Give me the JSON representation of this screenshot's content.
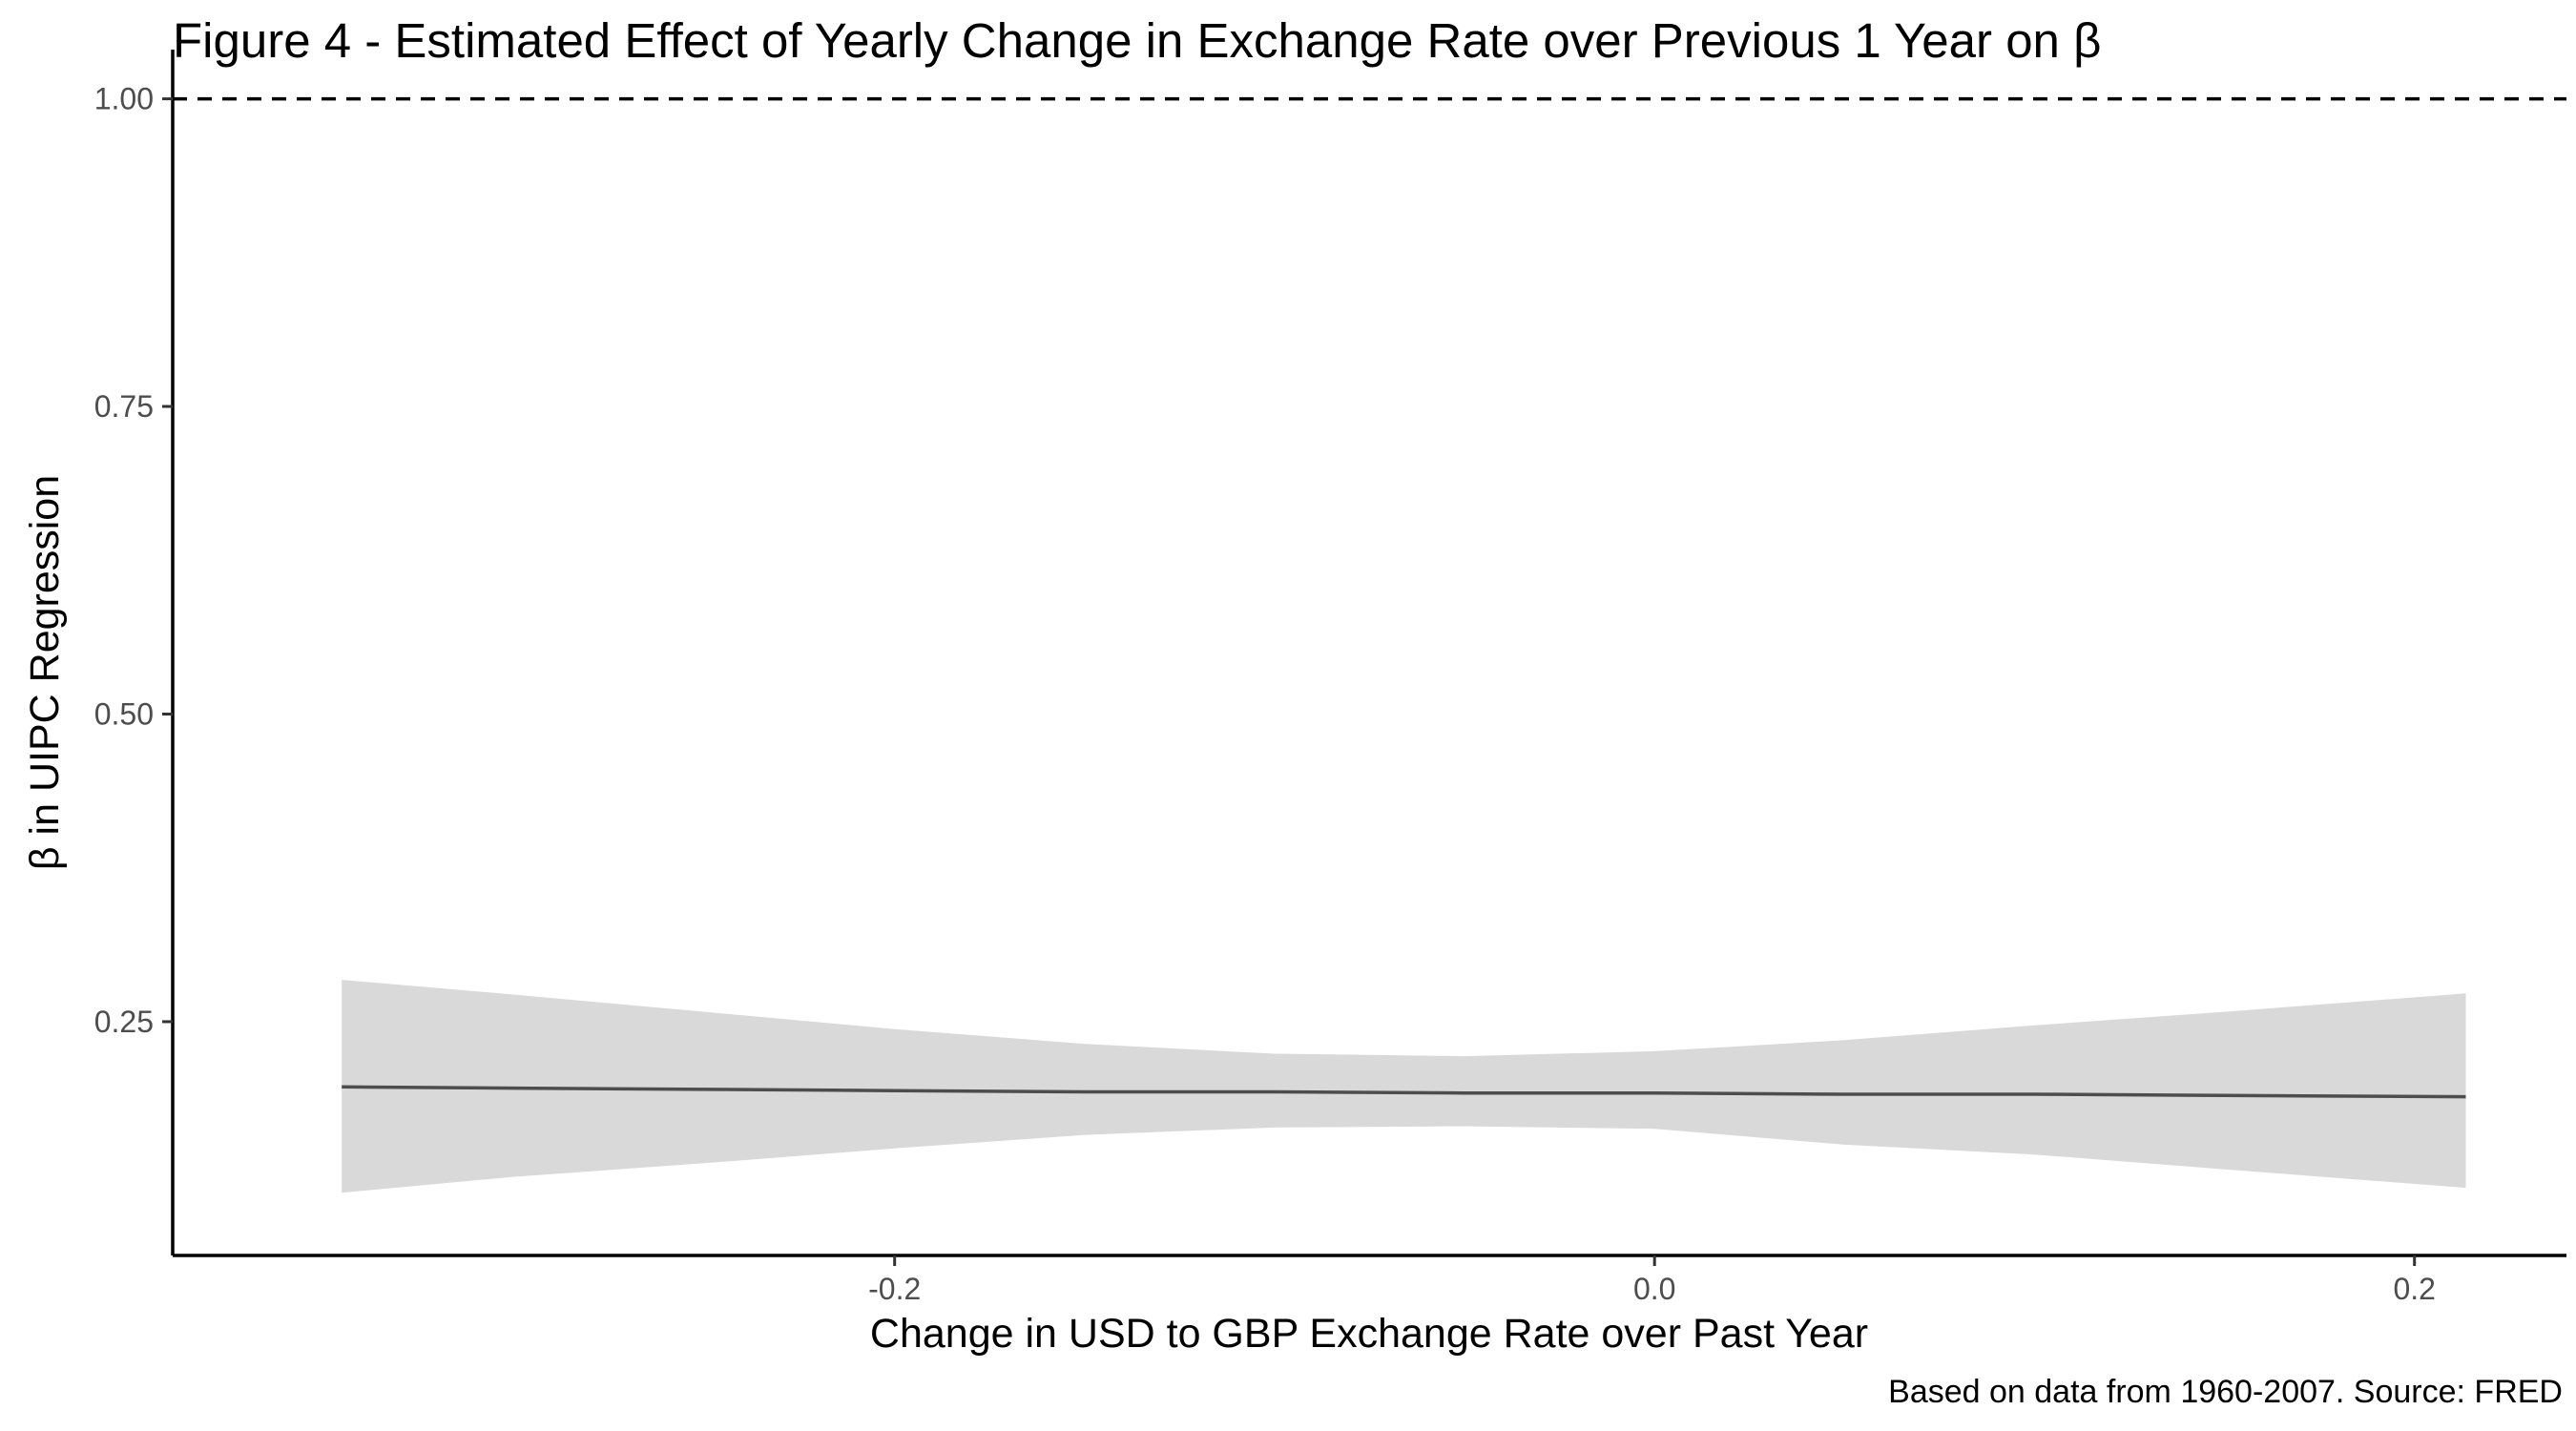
{
  "chart_data": {
    "type": "line",
    "title": "Figure 4 - Estimated Effect of Yearly Change in Exchange Rate over Previous 1 Year on β",
    "xlabel": "Change in USD to GBP Exchange Rate over Past Year",
    "ylabel": "β in UIPC Regression",
    "caption": "Based on data from 1960-2007. Source: FRED",
    "xlim": [
      -0.39,
      0.24
    ],
    "ylim": [
      0.06,
      1.04
    ],
    "x_ticks": [
      {
        "value": -0.2,
        "label": "-0.2"
      },
      {
        "value": 0.0,
        "label": "0.0"
      },
      {
        "value": 0.2,
        "label": "0.2"
      }
    ],
    "y_ticks": [
      {
        "value": 0.25,
        "label": "0.25"
      },
      {
        "value": 0.5,
        "label": "0.50"
      },
      {
        "value": 0.75,
        "label": "0.75"
      },
      {
        "value": 1.0,
        "label": "1.00"
      }
    ],
    "reference_line": {
      "y": 1.0,
      "style": "dashed",
      "color": "#000000"
    },
    "grid": false,
    "legend": "none",
    "series": [
      {
        "x": [
          -0.3455,
          -0.3,
          -0.25,
          -0.2,
          -0.15,
          -0.1,
          -0.05,
          0.0,
          0.05,
          0.1,
          0.15,
          0.2135
        ],
        "y": [
          0.197,
          0.196,
          0.195,
          0.194,
          0.193,
          0.193,
          0.192,
          0.192,
          0.191,
          0.191,
          0.19,
          0.189
        ],
        "lower": [
          0.111,
          0.124,
          0.135,
          0.147,
          0.158,
          0.164,
          0.165,
          0.163,
          0.15,
          0.142,
          0.13,
          0.115
        ],
        "upper": [
          0.284,
          0.272,
          0.258,
          0.244,
          0.232,
          0.224,
          0.222,
          0.226,
          0.235,
          0.247,
          0.258,
          0.273
        ],
        "line_color": "#4d4d4d",
        "band_color": "#d9d9d9"
      }
    ]
  }
}
